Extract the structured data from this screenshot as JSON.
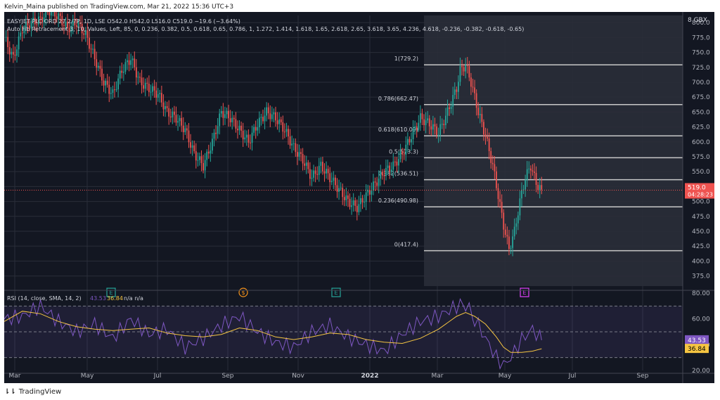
{
  "header": {
    "published": "Kelvin_Maina published on TradingView.com, Mar 21, 2022 15:36 UTC+3"
  },
  "footer": {
    "brand": "TradingView"
  },
  "colors": {
    "bg": "#131722",
    "up": "#26a69a",
    "down": "#ef5350",
    "rsi": "#7e57c2",
    "rsi_sma": "#f5c542",
    "fib_line": "#c8c8c8",
    "grid": "#2a2e39",
    "text": "#b2b5be"
  },
  "chart_data": [
    {
      "type": "candlestick",
      "title": "EASYJET PLC ORD 27 2/7P, 1D, LSE",
      "legend": {
        "symbol_line": "EASYJET PLC ORD 27 2/7P, 1D, LSE  O542.0  H542.0  L516.0  C519.0  −19.6 (−3.64%)",
        "indicator_line": "Auto Fib Retracement 3, 10, Values, Left, 85, 0, 0.236, 0.382, 0.5, 0.618, 0.65, 0.786, 1, 1.272, 1.414, 1.618, 1.65, 2.618, 2.65, 3.618, 3.65, 4.236, 4.618, -0.236, -0.382, -0.618, -0.65)"
      },
      "currency": "GBX",
      "currency_prefix": "8",
      "ylim": [
        358,
        812
      ],
      "y_ticks": [
        "375.0",
        "400.0",
        "425.0",
        "450.0",
        "475.0",
        "500.0",
        "525.0",
        "550.0",
        "575.0",
        "600.0",
        "625.0",
        "650.0",
        "675.0",
        "700.0",
        "725.0",
        "750.0",
        "775.0",
        "800.0"
      ],
      "x_ticks": [
        "Mar",
        "May",
        "Jul",
        "Sep",
        "Nov",
        "2022",
        "Mar",
        "May",
        "Jul",
        "Sep"
      ],
      "last_price": {
        "price": "519.0",
        "countdown": "04:28:23"
      },
      "fib_levels": [
        {
          "label": "1(729.2)",
          "value": 729.2
        },
        {
          "label": "0.786(662.47)",
          "value": 662.47
        },
        {
          "label": "0.618(610.09)",
          "value": 610.09
        },
        {
          "label": "0.5(573.3)",
          "value": 573.3
        },
        {
          "label": "0.382(536.51)",
          "value": 536.51
        },
        {
          "label": "0.236(490.98)",
          "value": 490.98
        },
        {
          "label": "0(417.4)",
          "value": 417.4
        }
      ],
      "events": [
        "E",
        "$",
        "E",
        "E"
      ],
      "price_series": [
        [
          0,
          775
        ],
        [
          5,
          740
        ],
        [
          10,
          790
        ],
        [
          15,
          800
        ],
        [
          20,
          805
        ],
        [
          25,
          820
        ],
        [
          30,
          810
        ],
        [
          35,
          790
        ],
        [
          40,
          800
        ],
        [
          45,
          780
        ],
        [
          50,
          740
        ],
        [
          55,
          700
        ],
        [
          60,
          680
        ],
        [
          65,
          720
        ],
        [
          70,
          740
        ],
        [
          75,
          700
        ],
        [
          80,
          690
        ],
        [
          85,
          680
        ],
        [
          90,
          650
        ],
        [
          95,
          640
        ],
        [
          100,
          620
        ],
        [
          105,
          580
        ],
        [
          110,
          560
        ],
        [
          115,
          600
        ],
        [
          120,
          650
        ],
        [
          125,
          640
        ],
        [
          130,
          620
        ],
        [
          135,
          600
        ],
        [
          140,
          630
        ],
        [
          145,
          650
        ],
        [
          150,
          640
        ],
        [
          155,
          620
        ],
        [
          160,
          590
        ],
        [
          165,
          570
        ],
        [
          170,
          540
        ],
        [
          175,
          560
        ],
        [
          180,
          540
        ],
        [
          185,
          520
        ],
        [
          190,
          500
        ],
        [
          195,
          490
        ],
        [
          200,
          510
        ],
        [
          205,
          530
        ],
        [
          210,
          550
        ],
        [
          215,
          560
        ],
        [
          220,
          580
        ],
        [
          225,
          610
        ],
        [
          230,
          640
        ],
        [
          235,
          630
        ],
        [
          240,
          615
        ],
        [
          245,
          650
        ],
        [
          250,
          690
        ],
        [
          252,
          720
        ],
        [
          255,
          729
        ],
        [
          258,
          700
        ],
        [
          262,
          650
        ],
        [
          266,
          610
        ],
        [
          270,
          560
        ],
        [
          273,
          510
        ],
        [
          276,
          460
        ],
        [
          279,
          420
        ],
        [
          282,
          450
        ],
        [
          285,
          500
        ],
        [
          288,
          540
        ],
        [
          291,
          560
        ],
        [
          294,
          530
        ],
        [
          297,
          520
        ]
      ]
    },
    {
      "type": "line",
      "title": "RSI (14, close, SMA, 14, 2)",
      "legend": {
        "name": "RSI (14, close, SMA, 14, 2)",
        "rsi": "43.53",
        "sma": "36.84",
        "extra": "n/a  n/a"
      },
      "ylim": [
        20,
        80
      ],
      "y_ticks": [
        "20.00",
        "40.00",
        "60.00",
        "80.00"
      ],
      "bands": {
        "upper": 70,
        "middle": 50,
        "lower": 30
      },
      "rsi_series": [
        [
          0,
          60
        ],
        [
          10,
          62
        ],
        [
          20,
          70
        ],
        [
          30,
          58
        ],
        [
          40,
          50
        ],
        [
          50,
          56
        ],
        [
          60,
          45
        ],
        [
          70,
          60
        ],
        [
          80,
          48
        ],
        [
          90,
          52
        ],
        [
          100,
          38
        ],
        [
          110,
          45
        ],
        [
          120,
          55
        ],
        [
          130,
          62
        ],
        [
          140,
          50
        ],
        [
          150,
          42
        ],
        [
          160,
          38
        ],
        [
          170,
          50
        ],
        [
          180,
          55
        ],
        [
          190,
          46
        ],
        [
          200,
          40
        ],
        [
          210,
          35
        ],
        [
          220,
          48
        ],
        [
          230,
          58
        ],
        [
          240,
          62
        ],
        [
          250,
          70
        ],
        [
          255,
          72
        ],
        [
          260,
          60
        ],
        [
          266,
          45
        ],
        [
          272,
          30
        ],
        [
          276,
          24
        ],
        [
          280,
          30
        ],
        [
          286,
          44
        ],
        [
          292,
          52
        ],
        [
          297,
          43.53
        ]
      ],
      "sma_series": [
        [
          0,
          58
        ],
        [
          10,
          66
        ],
        [
          20,
          64
        ],
        [
          30,
          58
        ],
        [
          40,
          54
        ],
        [
          50,
          52
        ],
        [
          60,
          51
        ],
        [
          70,
          52
        ],
        [
          80,
          53
        ],
        [
          90,
          49
        ],
        [
          100,
          47
        ],
        [
          110,
          46
        ],
        [
          120,
          48
        ],
        [
          130,
          53
        ],
        [
          140,
          51
        ],
        [
          150,
          46
        ],
        [
          160,
          44
        ],
        [
          170,
          46
        ],
        [
          180,
          49
        ],
        [
          190,
          48
        ],
        [
          200,
          44
        ],
        [
          210,
          42
        ],
        [
          220,
          41
        ],
        [
          230,
          45
        ],
        [
          240,
          52
        ],
        [
          250,
          62
        ],
        [
          255,
          65
        ],
        [
          260,
          62
        ],
        [
          266,
          56
        ],
        [
          272,
          46
        ],
        [
          276,
          38
        ],
        [
          280,
          34
        ],
        [
          286,
          34
        ],
        [
          292,
          35
        ],
        [
          297,
          36.84
        ]
      ]
    }
  ]
}
